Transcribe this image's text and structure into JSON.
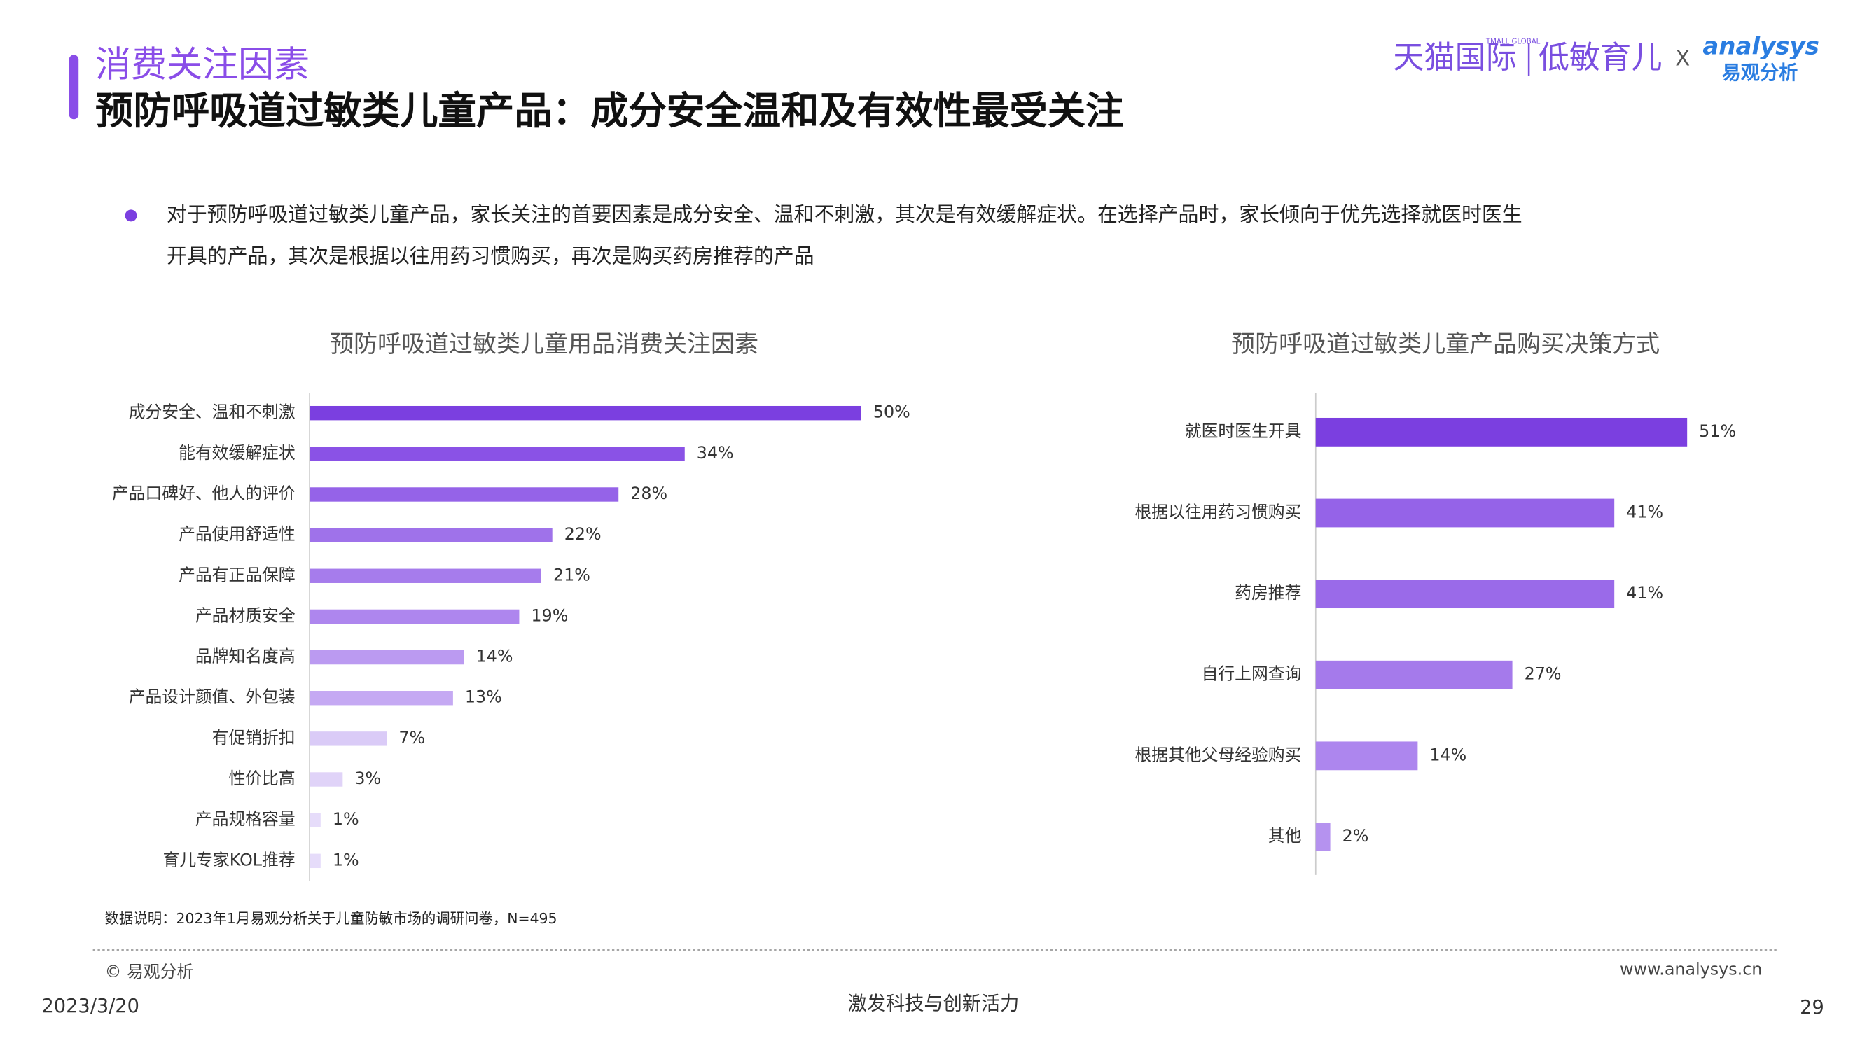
{
  "header": {
    "section": "消费关注因素",
    "title": "预防呼吸道过敏类儿童产品：成分安全温和及有效性最受关注"
  },
  "logo": {
    "brand": "天猫国际",
    "brand_en": "TMALL GLOBAL",
    "partner": "低敏育儿",
    "cross": "X",
    "company_en": "analysys",
    "company": "易观分析"
  },
  "bullet": [
    "对于预防呼吸道过敏类儿童产品，家长关注的首要因素是成分安全、温和不刺激，其次是有效缓解症状。在选择产品时，家长倾向于优先选择就医时医生",
    "开具的产品，其次是根据以往用药习惯购买，再次是购买药房推荐的产品"
  ],
  "chart_data": [
    {
      "type": "hbar",
      "title": "预防呼吸道过敏类儿童用品消费关注因素",
      "categories": [
        "成分安全、温和不刺激",
        "能有效缓解症状",
        "产品口碑好、他人的评价",
        "产品使用舒适性",
        "产品有正品保障",
        "产品材质安全",
        "品牌知名度高",
        "产品设计颜值、外包装",
        "有促销折扣",
        "性价比高",
        "产品规格容量",
        "育儿专家KOL推荐"
      ],
      "values": [
        50,
        34,
        28,
        22,
        21,
        19,
        14,
        13,
        7,
        3,
        1,
        1
      ],
      "value_labels": [
        "50%",
        "34%",
        "28%",
        "22%",
        "21%",
        "19%",
        "14%",
        "13%",
        "7%",
        "3%",
        "1%",
        "1%"
      ],
      "colors": [
        "#7b3fe0",
        "#8a52e6",
        "#9563e8",
        "#9f72ea",
        "#a67cec",
        "#ae86ee",
        "#bb9af1",
        "#c5a9f3",
        "#dacbf7",
        "#e0d3f8",
        "#e6dcfa",
        "#e6dcfa"
      ],
      "xlim": [
        0,
        60
      ]
    },
    {
      "type": "hbar",
      "title": "预防呼吸道过敏类儿童产品购买决策方式",
      "categories": [
        "就医时医生开具",
        "根据以往用药习惯购买",
        "药房推荐",
        "自行上网查询",
        "根据其他父母经验购买",
        "其他"
      ],
      "values": [
        51,
        41,
        41,
        27,
        14,
        2
      ],
      "value_labels": [
        "51%",
        "41%",
        "41%",
        "27%",
        "14%",
        "2%"
      ],
      "colors": [
        "#7b3fe0",
        "#9563e8",
        "#9a6ae9",
        "#a57aeb",
        "#ad86ee",
        "#b592ef"
      ],
      "xlim": [
        0,
        60
      ]
    }
  ],
  "footnote": "数据说明：2023年1月易观分析关于儿童防敏市场的调研问卷，N=495",
  "footer": {
    "copyright": "© 易观分析",
    "website": "www.analysys.cn",
    "date": "2023/3/20",
    "slogan": "激发科技与创新活力",
    "page": "29"
  }
}
